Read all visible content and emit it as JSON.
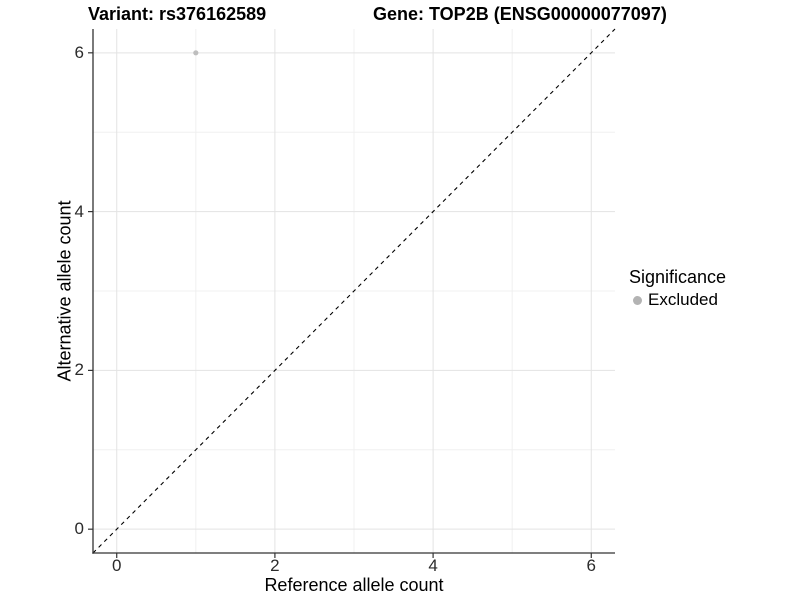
{
  "chart_data": {
    "type": "scatter",
    "title_left": "Variant: rs376162589",
    "title_right": "Gene: TOP2B (ENSG00000077097)",
    "xlabel": "Reference allele count",
    "ylabel": "Alternative allele count",
    "xlim": [
      -0.3,
      6.3
    ],
    "ylim": [
      -0.3,
      6.3
    ],
    "x_ticks": [
      0,
      2,
      4,
      6
    ],
    "y_ticks": [
      0,
      2,
      4,
      6
    ],
    "x_minor_ticks": [
      1,
      3,
      5
    ],
    "y_minor_ticks": [
      1,
      3,
      5
    ],
    "grid": {
      "major_color": "#e3e3e3",
      "minor_color": "#f0f0f0"
    },
    "axis_color": "#333333",
    "background": "#ffffff",
    "reference_line": {
      "type": "identity",
      "style": "dashed",
      "color": "#000000",
      "from": [
        -0.3,
        -0.3
      ],
      "to": [
        6.3,
        6.3
      ]
    },
    "series": [
      {
        "name": "Excluded",
        "color": "#bebebe",
        "point_radius": 2.6,
        "points": [
          [
            1,
            6
          ]
        ]
      }
    ],
    "legend": {
      "title": "Significance",
      "position": "right",
      "entries": [
        {
          "label": "Excluded",
          "color": "#b3b3b3"
        }
      ]
    }
  }
}
